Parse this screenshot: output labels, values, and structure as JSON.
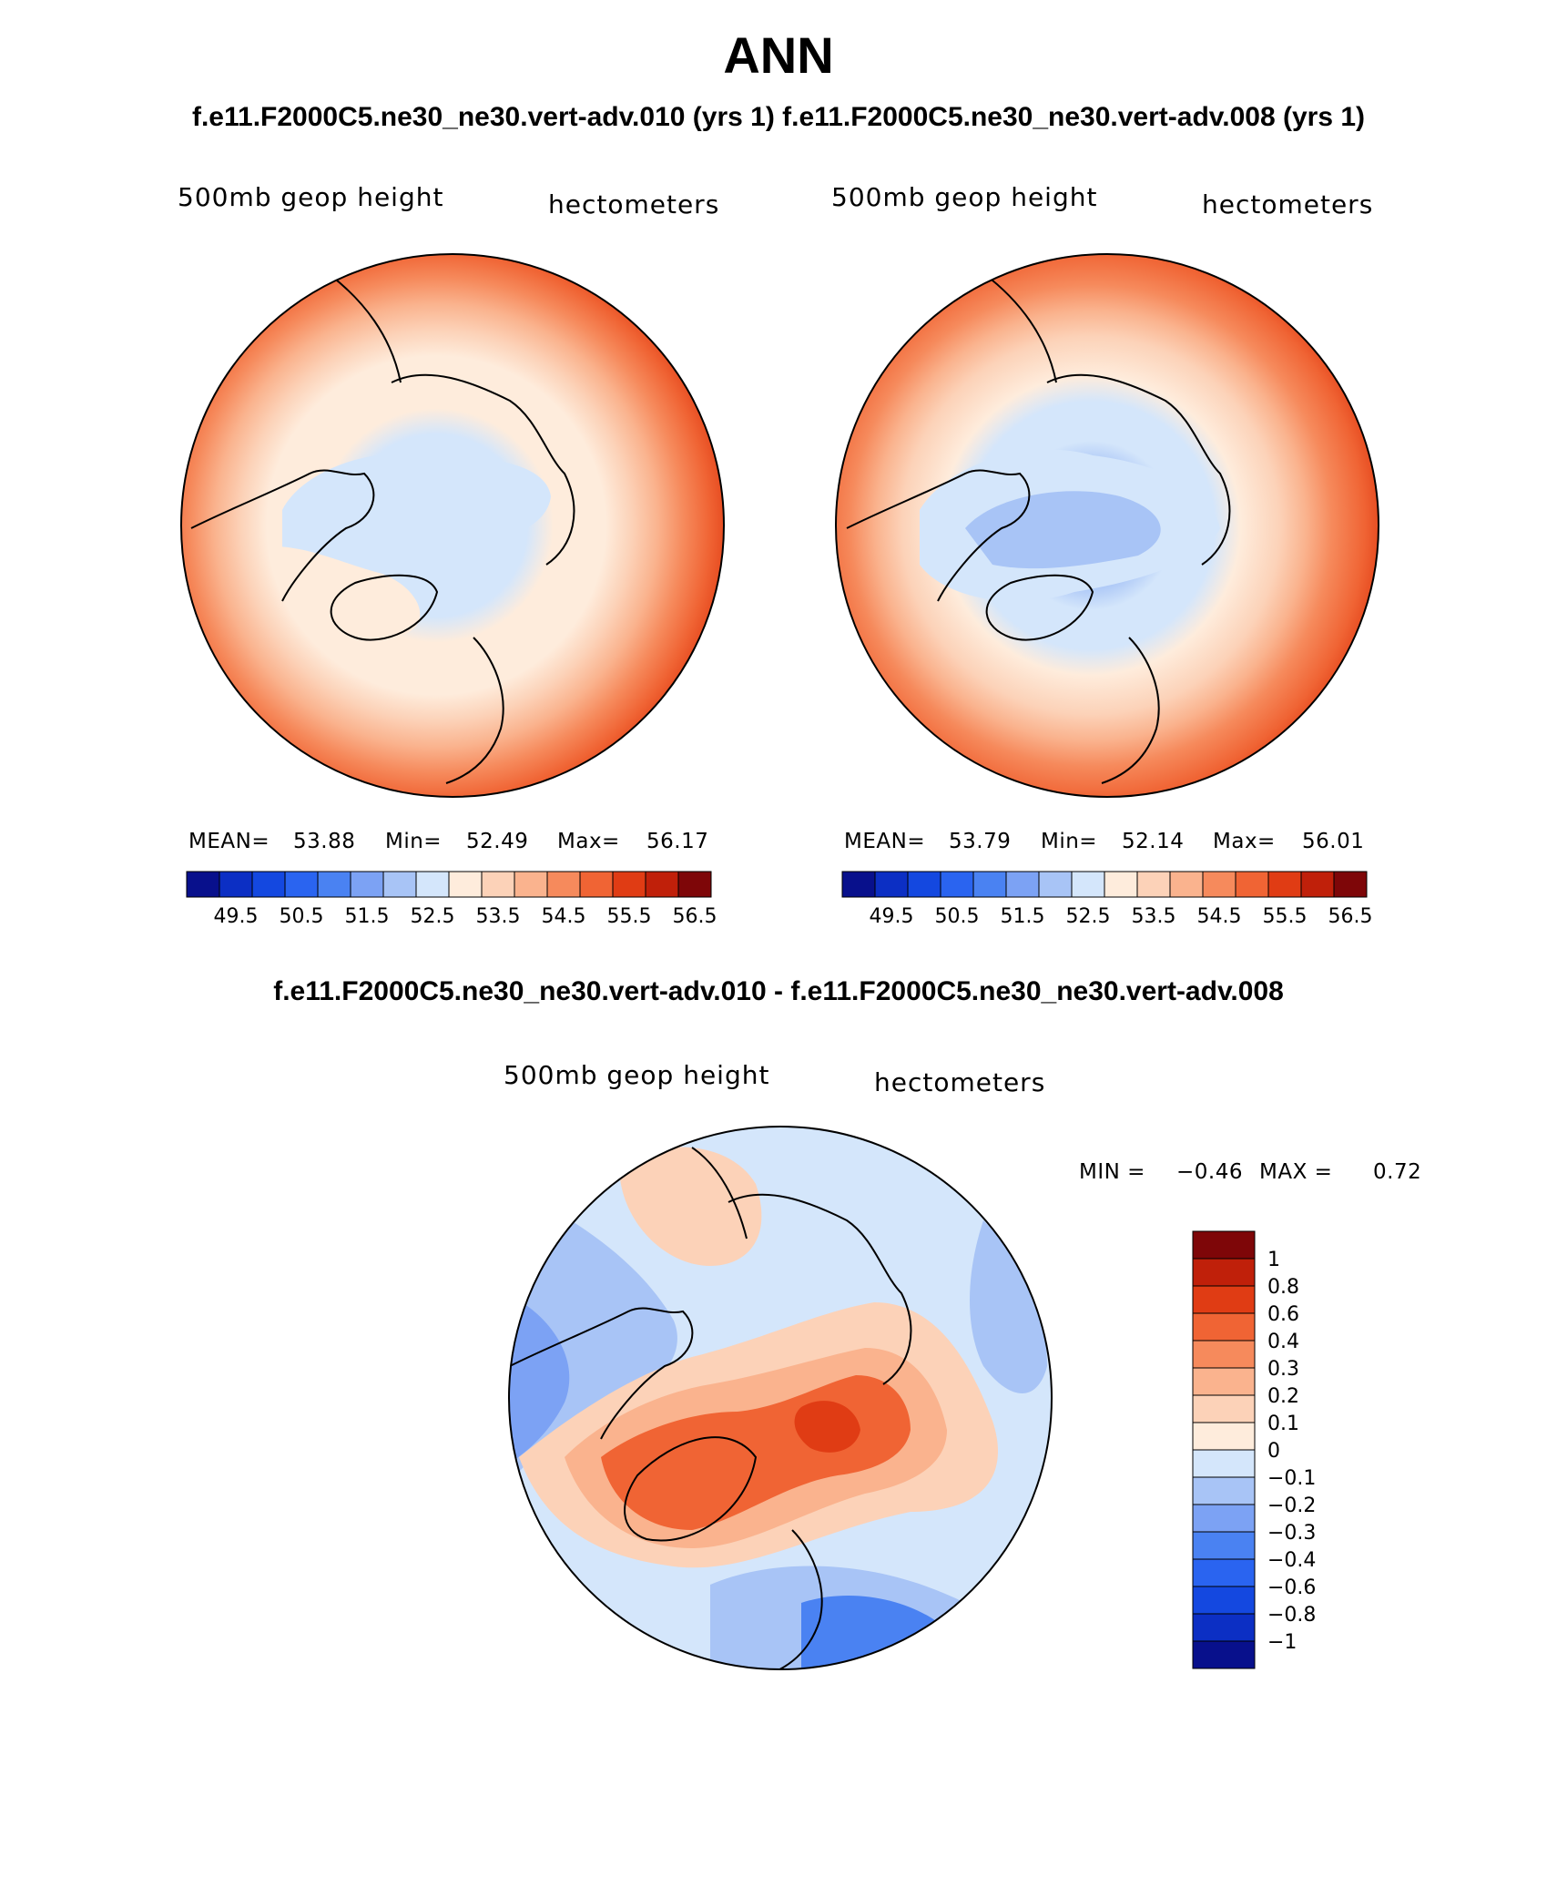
{
  "title": "ANN",
  "subtitle_top": "f.e11.F2000C5.ne30_ne30.vert-adv.010 (yrs 1) f.e11.F2000C5.ne30_ne30.vert-adv.008 (yrs 1)",
  "subtitle_diff": "f.e11.F2000C5.ne30_ne30.vert-adv.010 - f.e11.F2000C5.ne30_ne30.vert-adv.008",
  "colors": {
    "abs_scale": [
      "#08108c",
      "#0c2fc4",
      "#1448e0",
      "#2a64f0",
      "#4a82f2",
      "#7ca2f4",
      "#a8c4f6",
      "#d4e6fb",
      "#feecdc",
      "#fcd2b8",
      "#fab38e",
      "#f68a5c",
      "#f06434",
      "#e03c14",
      "#c0200a",
      "#7e0608"
    ],
    "diff_scale": [
      "#08108c",
      "#0c2fc4",
      "#1448e0",
      "#2a64f0",
      "#4a82f2",
      "#7ca2f4",
      "#a8c4f6",
      "#d4e6fb",
      "#feecdc",
      "#fcd2b8",
      "#fab38e",
      "#f68a5c",
      "#f06434",
      "#e03c14",
      "#c0200a",
      "#7e0608"
    ]
  },
  "chart_data": [
    {
      "type": "heatmap",
      "projection": "north-polar-stereographic",
      "variable": "500mb geop height",
      "units": "hectometers",
      "stats": {
        "mean_label": "MEAN=",
        "mean": "53.88",
        "min_label": "Min=",
        "min": "52.49",
        "max_label": "Max=",
        "max": "56.17"
      },
      "colorbar_ticks": [
        "49.5",
        "50.5",
        "51.5",
        "52.5",
        "53.5",
        "54.5",
        "55.5",
        "56.5"
      ],
      "contour_levels": [
        49.5,
        50,
        50.5,
        51,
        51.5,
        52,
        52.5,
        53,
        53.5,
        54,
        54.5,
        55,
        55.5,
        56,
        56.5
      ]
    },
    {
      "type": "heatmap",
      "projection": "north-polar-stereographic",
      "variable": "500mb geop height",
      "units": "hectometers",
      "stats": {
        "mean_label": "MEAN=",
        "mean": "53.79",
        "min_label": "Min=",
        "min": "52.14",
        "max_label": "Max=",
        "max": "56.01"
      },
      "colorbar_ticks": [
        "49.5",
        "50.5",
        "51.5",
        "52.5",
        "53.5",
        "54.5",
        "55.5",
        "56.5"
      ],
      "contour_levels": [
        49.5,
        50,
        50.5,
        51,
        51.5,
        52,
        52.5,
        53,
        53.5,
        54,
        54.5,
        55,
        55.5,
        56,
        56.5
      ]
    },
    {
      "type": "heatmap",
      "projection": "north-polar-stereographic",
      "variable": "500mb geop height",
      "units": "hectometers",
      "stats": {
        "min_label": "MIN =",
        "min": "−0.46",
        "max_label": "MAX =",
        "max": "0.72"
      },
      "colorbar_ticks": [
        "1",
        "0.8",
        "0.6",
        "0.4",
        "0.3",
        "0.2",
        "0.1",
        "0",
        "−0.1",
        "−0.2",
        "−0.3",
        "−0.4",
        "−0.6",
        "−0.8",
        "−1"
      ],
      "contour_levels": [
        -1,
        -0.8,
        -0.6,
        -0.4,
        -0.3,
        -0.2,
        -0.1,
        0,
        0.1,
        0.2,
        0.3,
        0.4,
        0.6,
        0.8,
        1
      ]
    }
  ]
}
